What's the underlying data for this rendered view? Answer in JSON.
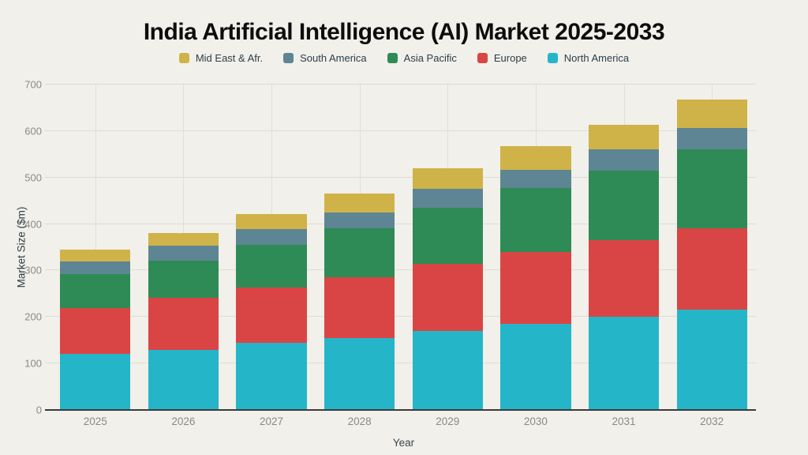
{
  "title": "India Artificial Intelligence (AI) Market 2025-2033",
  "legend": [
    {
      "label": "Mid East & Afr.",
      "color": "#cfb348"
    },
    {
      "label": "South America",
      "color": "#5e8593"
    },
    {
      "label": "Asia Pacific",
      "color": "#2e8b55"
    },
    {
      "label": "Europe",
      "color": "#d94545"
    },
    {
      "label": "North America",
      "color": "#25b5c9"
    }
  ],
  "chart_data": {
    "type": "bar",
    "stacked": true,
    "title": "India Artificial Intelligence (AI) Market 2025-2033",
    "xlabel": "Year",
    "ylabel": "Market Size ($m)",
    "ylim": [
      0,
      700
    ],
    "yticks": [
      0,
      100,
      200,
      300,
      400,
      500,
      600,
      700
    ],
    "grid": true,
    "legend_position": "top",
    "categories": [
      "2025",
      "2026",
      "2027",
      "2028",
      "2029",
      "2030",
      "2031",
      "2032"
    ],
    "series": [
      {
        "name": "North America",
        "color": "#25b5c9",
        "values": [
          120,
          130,
          145,
          155,
          170,
          185,
          200,
          215
        ]
      },
      {
        "name": "Europe",
        "color": "#d94545",
        "values": [
          100,
          112,
          118,
          130,
          145,
          155,
          165,
          175
        ]
      },
      {
        "name": "Asia Pacific",
        "color": "#2e8b55",
        "values": [
          72,
          80,
          93,
          105,
          120,
          137,
          150,
          170
        ]
      },
      {
        "name": "South America",
        "color": "#5e8593",
        "values": [
          28,
          31,
          34,
          35,
          41,
          40,
          45,
          47
        ]
      },
      {
        "name": "Mid East & Afr.",
        "color": "#cfb348",
        "values": [
          25,
          28,
          32,
          40,
          44,
          50,
          53,
          60
        ]
      }
    ],
    "totals": [
      345,
      381,
      422,
      465,
      520,
      567,
      613,
      667
    ]
  },
  "colors": {
    "background": "#f1f0ea",
    "gridline": "#dedcd3",
    "axis_line": "#3b3b3b",
    "tick_text": "#8c8b82",
    "axis_label_text": "#2f3e46",
    "legend_text": "#2c3e4a",
    "title_text": "#0d0d0d"
  }
}
